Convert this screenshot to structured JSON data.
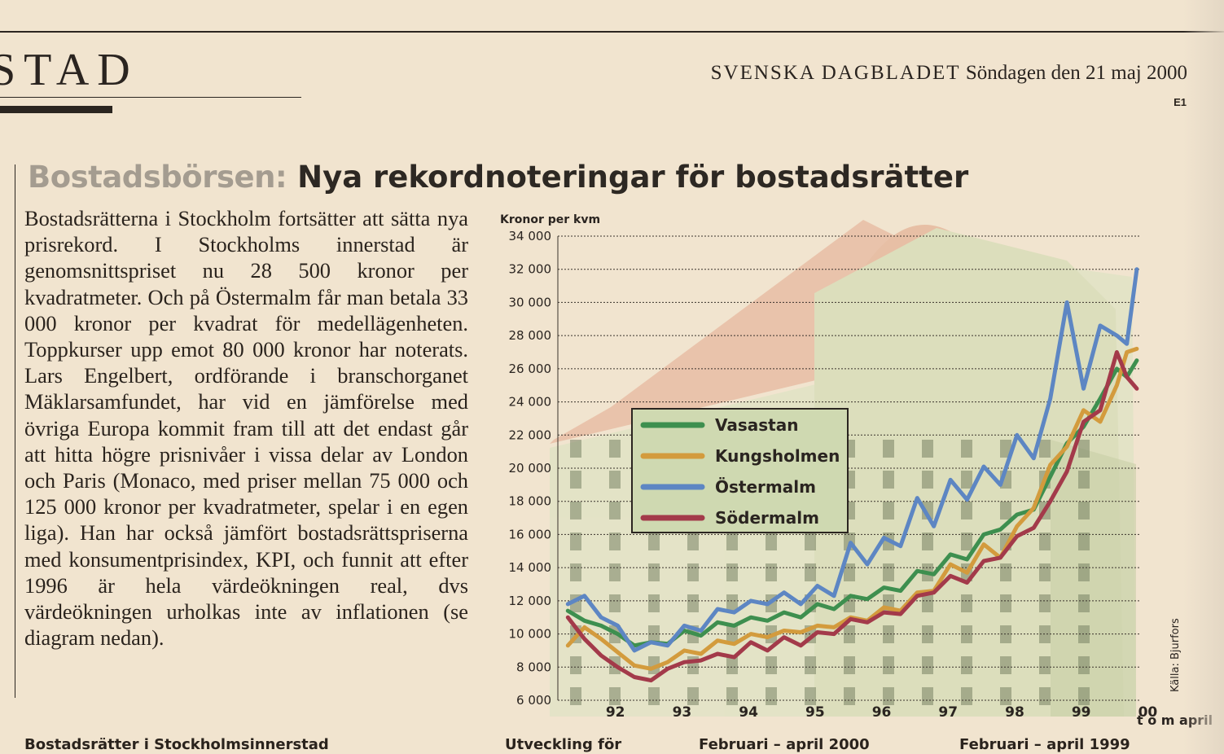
{
  "section": {
    "name": "STAD"
  },
  "masthead": {
    "paper": "SVENSKA DAGBLADET",
    "date": "Söndagen den 21 maj 2000",
    "page": "E1"
  },
  "headline": {
    "kicker": "Bostadsbörsen:",
    "title": "Nya rekordnoteringar för bostadsrätter"
  },
  "body": "Bostadsrätterna i Stockholm fortsätter att sätta nya prisrekord. I Stockholms innerstad är genomsnittspriset nu 28 500 kronor per kvadratmeter. Och på Östermalm får man betala 33 000 kronor per kvadrat för medellägenheten. Toppkurser upp emot 80 000 kronor har noterats. Lars Engelbert, ordförande i branschorganet Mäklarsamfundet, har vid en jämförelse med övriga Europa kommit fram till att det endast går att hitta högre prisnivåer i vissa delar av London och Paris (Monaco, med priser mellan 75 000 och 125 000 kronor per kvadratmeter, spelar i en egen liga). Han har också jämfört bostadsrättspriserna med konsumentprisindex, KPI, och funnit att efter 1996 är hela värdeökningen real, dvs värdeökningen urholkas inte av inflationen (se diagram nedan).",
  "footer": {
    "left": "Bostadsrätter i Stockholmsinnerstad",
    "mid": "Utveckling för",
    "mid2": "Februari – april 2000",
    "right": "Februari – april 1999"
  },
  "chart_data": {
    "type": "line",
    "ylabel": "Kronor per kvm",
    "ylim": [
      6000,
      34000
    ],
    "yticks": [
      6000,
      8000,
      10000,
      12000,
      14000,
      16000,
      18000,
      20000,
      22000,
      24000,
      26000,
      28000,
      30000,
      32000,
      34000
    ],
    "ytick_labels": [
      "6 000",
      "8 000",
      "10 000",
      "12 000",
      "14 000",
      "16 000",
      "18 000",
      "20 000",
      "22 000",
      "24 000",
      "26 000",
      "28 000",
      "30 000",
      "32 000",
      "34 000"
    ],
    "xlim": [
      1991.6,
      2000.35
    ],
    "xticks": [
      1992,
      1993,
      1994,
      1995,
      1996,
      1997,
      1998,
      1999,
      2000
    ],
    "xtick_labels": [
      "92",
      "93",
      "94",
      "95",
      "96",
      "97",
      "98",
      "99",
      "00"
    ],
    "x_note": "t o m april",
    "source": "Källa: Bjurfors",
    "grid": true,
    "legend_position": "center-left",
    "series": [
      {
        "name": "Vasastan",
        "color": "#3e8f4f",
        "x": [
          1991.75,
          1992.0,
          1992.25,
          1992.5,
          1992.75,
          1993.0,
          1993.25,
          1993.5,
          1993.75,
          1994.0,
          1994.25,
          1994.5,
          1994.75,
          1995.0,
          1995.25,
          1995.5,
          1995.75,
          1996.0,
          1996.25,
          1996.5,
          1996.75,
          1997.0,
          1997.25,
          1997.5,
          1997.75,
          1998.0,
          1998.25,
          1998.5,
          1998.75,
          1999.0,
          1999.25,
          1999.5,
          1999.75,
          2000.0,
          2000.15,
          2000.3
        ],
        "values": [
          11400,
          10800,
          10500,
          10000,
          9300,
          9500,
          9400,
          10200,
          9900,
          10700,
          10500,
          11000,
          10800,
          11300,
          11000,
          11800,
          11500,
          12300,
          12100,
          12800,
          12600,
          13800,
          13600,
          14800,
          14500,
          16000,
          16300,
          17200,
          17500,
          19500,
          21500,
          22500,
          24200,
          26000,
          25500,
          26500
        ]
      },
      {
        "name": "Kungsholmen",
        "color": "#d39b3d",
        "x": [
          1991.75,
          1992.0,
          1992.25,
          1992.5,
          1992.75,
          1993.0,
          1993.25,
          1993.5,
          1993.75,
          1994.0,
          1994.25,
          1994.5,
          1994.75,
          1995.0,
          1995.25,
          1995.5,
          1995.75,
          1996.0,
          1996.25,
          1996.5,
          1996.75,
          1997.0,
          1997.25,
          1997.5,
          1997.75,
          1998.0,
          1998.25,
          1998.5,
          1998.75,
          1999.0,
          1999.25,
          1999.5,
          1999.75,
          2000.0,
          2000.15,
          2000.3
        ],
        "values": [
          9300,
          10400,
          9700,
          8900,
          8100,
          7900,
          8300,
          9000,
          8800,
          9600,
          9400,
          10000,
          9800,
          10200,
          10100,
          10500,
          10400,
          11000,
          10800,
          11600,
          11400,
          12500,
          12600,
          14200,
          13700,
          15400,
          14600,
          16500,
          17600,
          20200,
          21300,
          23500,
          22800,
          25000,
          27000,
          27200
        ]
      },
      {
        "name": "Östermalm",
        "color": "#5d86c3",
        "x": [
          1991.75,
          1992.0,
          1992.25,
          1992.5,
          1992.75,
          1993.0,
          1993.25,
          1993.5,
          1993.75,
          1994.0,
          1994.25,
          1994.5,
          1994.75,
          1995.0,
          1995.25,
          1995.5,
          1995.75,
          1996.0,
          1996.25,
          1996.5,
          1996.75,
          1997.0,
          1997.25,
          1997.5,
          1997.75,
          1998.0,
          1998.25,
          1998.5,
          1998.75,
          1999.0,
          1999.25,
          1999.5,
          1999.75,
          2000.0,
          2000.15,
          2000.3
        ],
        "values": [
          11800,
          12300,
          11000,
          10500,
          9000,
          9500,
          9300,
          10500,
          10200,
          11500,
          11300,
          12000,
          11800,
          12500,
          11800,
          12900,
          12300,
          15500,
          14200,
          15800,
          15300,
          18200,
          16500,
          19300,
          18100,
          20100,
          19000,
          22000,
          20600,
          24200,
          30000,
          24800,
          28600,
          28000,
          27500,
          32000
        ]
      },
      {
        "name": "Södermalm",
        "color": "#a33a4a",
        "x": [
          1991.75,
          1992.0,
          1992.25,
          1992.5,
          1992.75,
          1993.0,
          1993.25,
          1993.5,
          1993.75,
          1994.0,
          1994.25,
          1994.5,
          1994.75,
          1995.0,
          1995.25,
          1995.5,
          1995.75,
          1996.0,
          1996.25,
          1996.5,
          1996.75,
          1997.0,
          1997.25,
          1997.5,
          1997.75,
          1998.0,
          1998.25,
          1998.5,
          1998.75,
          1999.0,
          1999.25,
          1999.5,
          1999.75,
          2000.0,
          2000.15,
          2000.3
        ],
        "values": [
          11000,
          9700,
          8700,
          8000,
          7400,
          7200,
          7900,
          8300,
          8400,
          8800,
          8600,
          9500,
          9000,
          9800,
          9300,
          10100,
          10000,
          10900,
          10700,
          11300,
          11200,
          12300,
          12500,
          13500,
          13100,
          14400,
          14600,
          15900,
          16400,
          18000,
          19800,
          22800,
          23500,
          27000,
          25500,
          24800
        ]
      }
    ]
  }
}
